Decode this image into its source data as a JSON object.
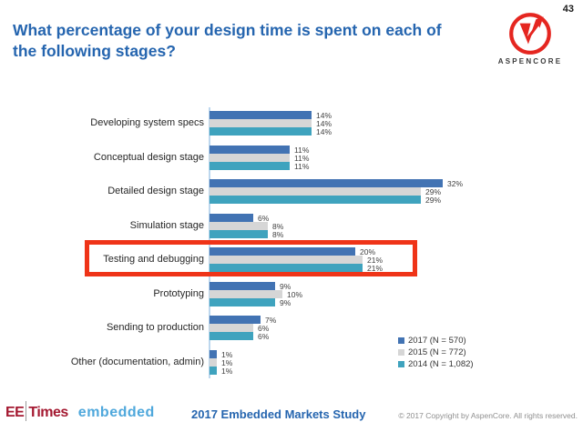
{
  "page": {
    "number": "43"
  },
  "title": "What percentage of your design time is spent on each of the following stages?",
  "logos": {
    "aspencore_text": "ASPENCORE",
    "eetimes_ee": "EE",
    "eetimes_times": "Times",
    "embedded": "embedded"
  },
  "footer": {
    "study_title": "2017 Embedded Markets Study",
    "copyright": "© 2017 Copyright by AspenCore. All rights reserved."
  },
  "colors": {
    "title_blue": "#2565AF",
    "axis_line": "#BDD7EE",
    "highlight_red": "#EF3418",
    "aspencore_red": "#E52620",
    "eetimes_red": "#A41931",
    "embedded_blue": "#4FA8DC"
  },
  "chart_data": {
    "type": "bar",
    "orientation": "horizontal",
    "title": "",
    "xlabel": "",
    "ylabel": "",
    "categories": [
      "Developing system specs",
      "Conceptual design stage",
      "Detailed design stage",
      "Simulation stage",
      "Testing and debugging",
      "Prototyping",
      "Sending to production",
      "Other (documentation, admin)"
    ],
    "series": [
      {
        "name": "2017 (N = 570)",
        "color": "#4273B3",
        "values": [
          14,
          11,
          32,
          6,
          20,
          9,
          7,
          1
        ]
      },
      {
        "name": "2015 (N = 772)",
        "color": "#D6D6D6",
        "values": [
          14,
          11,
          29,
          8,
          21,
          10,
          6,
          1
        ]
      },
      {
        "name": "2014 (N = 1,082)",
        "color": "#3FA3BE",
        "values": [
          14,
          11,
          29,
          8,
          21,
          9,
          6,
          1
        ]
      }
    ],
    "value_suffix": "%",
    "xlim": [
      0,
      35
    ],
    "gridlines": false,
    "legend_position": "bottom-right",
    "highlight": {
      "category": "Testing and debugging",
      "box_color": "#EF3418"
    }
  }
}
